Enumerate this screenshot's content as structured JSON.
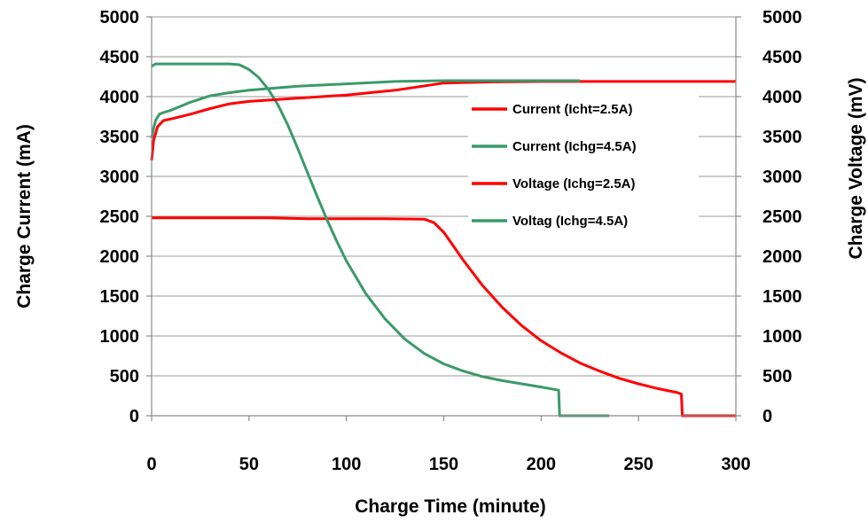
{
  "chart_data": {
    "type": "line",
    "xlabel": "Charge Time (minute)",
    "ylabel": "Charge Current (mA)",
    "y2label": "Charge Voltage (mV)",
    "xlim": [
      0,
      300
    ],
    "ylim": [
      0,
      5000
    ],
    "y2lim": [
      0,
      5000
    ],
    "xticks": [
      "0",
      "50",
      "100",
      "150",
      "200",
      "250",
      "300"
    ],
    "yticks": [
      "0",
      "500",
      "1000",
      "1500",
      "2000",
      "2500",
      "3000",
      "3500",
      "4000",
      "4500",
      "5000"
    ],
    "y2ticks": [
      "0",
      "500",
      "1000",
      "1500",
      "2000",
      "2500",
      "3000",
      "3500",
      "4000",
      "4500",
      "5000"
    ],
    "grid": "horizontal",
    "legend": "upper-right",
    "colors": {
      "red": "#ff0000",
      "green": "#3a9a6a"
    },
    "series": [
      {
        "name": "Current (Icht=2.5A)",
        "color": "#ff0000",
        "axis": "left",
        "x": [
          0,
          20,
          40,
          60,
          80,
          100,
          120,
          140,
          145,
          150,
          160,
          170,
          180,
          190,
          200,
          210,
          220,
          230,
          240,
          250,
          260,
          270,
          272,
          272.5,
          280,
          290,
          300
        ],
        "y": [
          2480,
          2480,
          2480,
          2480,
          2470,
          2470,
          2470,
          2465,
          2420,
          2300,
          1950,
          1630,
          1360,
          1130,
          940,
          790,
          660,
          560,
          470,
          400,
          340,
          290,
          270,
          0,
          0,
          0,
          0
        ]
      },
      {
        "name": "Current (Ichg=4.5A)",
        "color": "#3a9a6a",
        "axis": "left",
        "x": [
          0,
          2,
          10,
          20,
          30,
          40,
          45,
          50,
          55,
          60,
          65,
          70,
          75,
          80,
          85,
          90,
          95,
          100,
          110,
          120,
          130,
          140,
          150,
          160,
          170,
          180,
          190,
          200,
          209,
          209.5,
          220,
          235
        ],
        "y": [
          4380,
          4410,
          4410,
          4410,
          4410,
          4410,
          4400,
          4340,
          4240,
          4090,
          3890,
          3640,
          3350,
          3050,
          2750,
          2460,
          2190,
          1940,
          1530,
          1210,
          960,
          780,
          650,
          560,
          490,
          440,
          400,
          360,
          320,
          0,
          0,
          0
        ]
      },
      {
        "name": "Voltage (Ichg=2.5A)",
        "color": "#ff0000",
        "axis": "right",
        "x": [
          0,
          1,
          3,
          6,
          10,
          20,
          30,
          40,
          50,
          75,
          100,
          125,
          150,
          175,
          200,
          225,
          250,
          275,
          300
        ],
        "y": [
          3200,
          3450,
          3620,
          3700,
          3720,
          3780,
          3850,
          3910,
          3940,
          3980,
          4020,
          4080,
          4170,
          4185,
          4190,
          4190,
          4190,
          4190,
          4190
        ]
      },
      {
        "name": "Voltag (Ichg=4.5A)",
        "color": "#3a9a6a",
        "axis": "right",
        "x": [
          0,
          1,
          2,
          4,
          6,
          10,
          20,
          30,
          40,
          50,
          75,
          100,
          125,
          150,
          175,
          200,
          220
        ],
        "y": [
          3480,
          3600,
          3700,
          3780,
          3800,
          3830,
          3930,
          4010,
          4050,
          4080,
          4130,
          4160,
          4190,
          4200,
          4200,
          4200,
          4200
        ]
      }
    ]
  }
}
